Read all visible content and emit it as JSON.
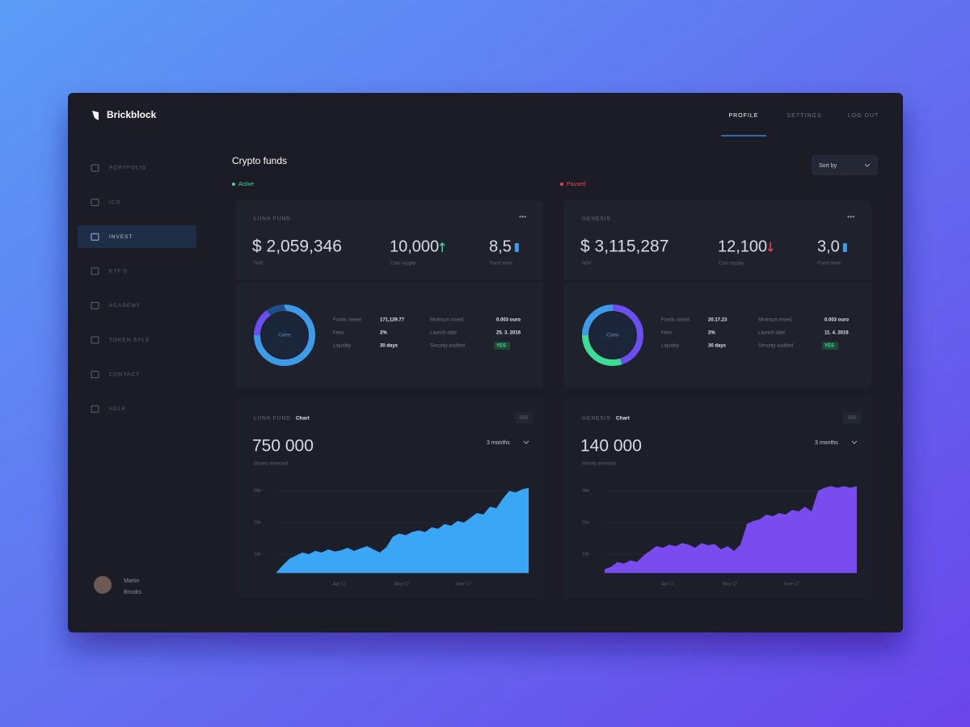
{
  "brand": "Brickblock",
  "nav": [
    "PROFILE",
    "SETTINGS",
    "LOG OUT"
  ],
  "sidebar": [
    "PORTFOLIO",
    "ICO",
    "INVEST",
    "ETF'S",
    "ACADEMY",
    "TOKEN SALE",
    "CONTACT",
    "HELP"
  ],
  "user": {
    "first": "Martin",
    "last": "Brooks"
  },
  "page_title": "Crypto funds",
  "sort": "Sort by",
  "status": [
    "Active",
    "Paused"
  ],
  "funds": [
    {
      "name": "LUNA FUND",
      "nav": "$ 2,059,346",
      "nav_label": "NAV",
      "supply": "10,000",
      "supply_label": "Coin supply",
      "level": "8,5",
      "level_label": "Fund level",
      "donut": {
        "center": "Coins",
        "segments": [
          {
            "value": 75,
            "color": "#3d9be9"
          },
          {
            "value": 15,
            "color": "#6b4ff0"
          },
          {
            "value": 10,
            "color": "#1f4f8a"
          }
        ]
      },
      "details": [
        [
          "Funds raised",
          "171,129.77"
        ],
        [
          "Fees",
          "2%"
        ],
        [
          "Liquidity",
          "30 days"
        ],
        [
          "Minimum invest",
          "0.003 ouro"
        ],
        [
          "Launch date",
          "25. 3. 2016"
        ],
        [
          "Security audited",
          "YES"
        ]
      ]
    },
    {
      "name": "GENESIS",
      "nav": "$ 3,115,287",
      "nav_label": "NAV",
      "supply": "12,100",
      "supply_label": "Coin supply",
      "level": "3,0",
      "level_label": "Fund level",
      "donut": {
        "center": "Coins",
        "segments": [
          {
            "value": 45,
            "color": "#6b4ff0"
          },
          {
            "value": 30,
            "color": "#3ddc97"
          },
          {
            "value": 25,
            "color": "#3d9be9"
          }
        ]
      },
      "details": [
        [
          "Funds raised",
          "20.17.23"
        ],
        [
          "Fees",
          "2%"
        ],
        [
          "Liquidity",
          "30 days"
        ],
        [
          "Minimum invest",
          "0.003 ouro"
        ],
        [
          "Launch date",
          "11. 4. 2016"
        ],
        [
          "Security audited",
          "YES"
        ]
      ]
    }
  ],
  "charts": [
    {
      "title": "LUNA FUND",
      "tag": "Chart",
      "amount": "750 000",
      "amount_label": "Money invested",
      "period": "3 months",
      "button": "USD",
      "color": "#3ba6f5",
      "ylim": [
        4000,
        33000
      ],
      "yticks": [
        {
          "value": 10000,
          "label": "10k"
        },
        {
          "value": 20000,
          "label": "20k"
        },
        {
          "value": 30000,
          "label": "30k"
        }
      ],
      "xticks": [
        "Apr 17",
        "May 17",
        "June 17"
      ],
      "values": [
        4200,
        6500,
        8500,
        9500,
        10500,
        10000,
        11000,
        10500,
        11500,
        10800,
        11200,
        12000,
        11000,
        11800,
        12500,
        11500,
        10500,
        12200,
        15500,
        16500,
        16000,
        17000,
        17500,
        17000,
        18500,
        18000,
        19500,
        19000,
        20500,
        20000,
        21500,
        23000,
        22500,
        25000,
        24500,
        27500,
        30000,
        29500,
        30500,
        31000
      ]
    },
    {
      "title": "GENESIS",
      "tag": "Chart",
      "amount": "140 000",
      "amount_label": "Money invested",
      "period": "3 months",
      "button": "USD",
      "color": "#7a4cf0",
      "ylim": [
        4000,
        33000
      ],
      "yticks": [
        {
          "value": 10000,
          "label": "10k"
        },
        {
          "value": 20000,
          "label": "20k"
        },
        {
          "value": 30000,
          "label": "30k"
        }
      ],
      "xticks": [
        "Apr 17",
        "May 17",
        "June 17"
      ],
      "values": [
        5200,
        6000,
        7500,
        7000,
        8000,
        7500,
        9500,
        11000,
        12500,
        12000,
        13000,
        12500,
        13500,
        13000,
        12000,
        13500,
        12800,
        13200,
        11500,
        12500,
        11000,
        13000,
        19500,
        20500,
        21000,
        22500,
        22000,
        23000,
        22500,
        24000,
        23500,
        25000,
        23500,
        30000,
        31000,
        31500,
        31000,
        31500,
        31000,
        31500
      ]
    }
  ]
}
